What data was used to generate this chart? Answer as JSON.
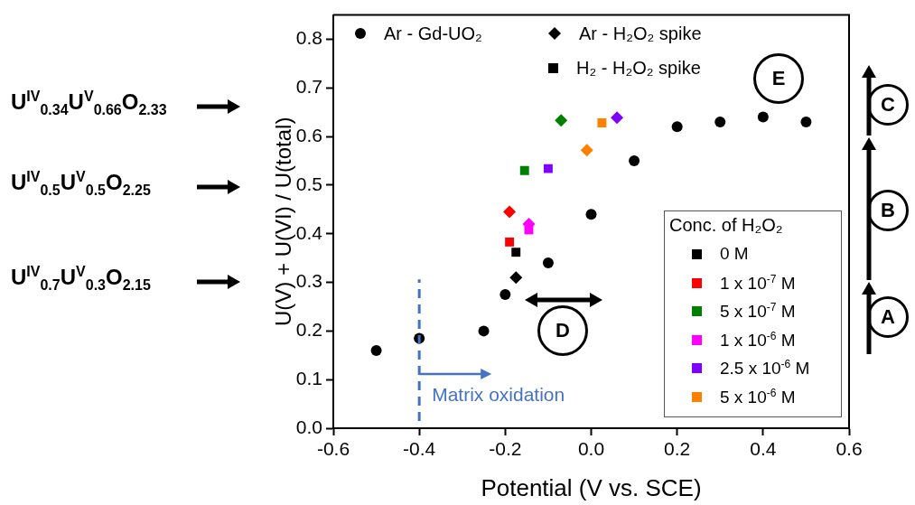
{
  "chart_data": {
    "type": "scatter",
    "xlabel": "Potential (V vs. SCE)",
    "ylabel": "U(V) + U(VI) / U(total)",
    "xlim": [
      -0.6,
      0.6
    ],
    "xticks": [
      -0.6,
      -0.4,
      -0.2,
      {
        "value": 0,
        "label": "0.0"
      },
      0.2,
      0.4,
      0.6
    ],
    "ylim": [
      0,
      0.85
    ],
    "yticks": [
      {
        "value": 0,
        "label": "0.0"
      },
      0.1,
      0.2,
      0.3,
      0.4,
      0.5,
      0.6,
      0.7,
      0.8
    ],
    "grid": false,
    "legend": "top left",
    "legend_title": "Conc. of H₂O₂",
    "series": [
      {
        "name": "Ar - Gd-UO₂",
        "marker": "circle",
        "color": "#000000",
        "x": [
          -0.5,
          -0.4,
          -0.25,
          -0.2,
          -0.1,
          0,
          0.1,
          0.2,
          0.3,
          0.4,
          0.5
        ],
        "values": [
          0.16,
          0.185,
          0.2,
          0.275,
          0.34,
          0.44,
          0.55,
          0.62,
          0.63,
          0.64,
          0.63
        ]
      },
      {
        "name": "Ar - H₂O₂ spike",
        "marker": "diamond",
        "color": "#000000",
        "colors": [
          "#000000",
          "#ff0000",
          "#ff00ff",
          "#008000",
          "#ff8000",
          "#8000ff"
        ],
        "x": [
          -0.175,
          -0.19,
          -0.145,
          -0.07,
          -0.01,
          0.06
        ],
        "values": [
          0.31,
          0.445,
          0.42,
          0.633,
          0.572,
          0.639
        ]
      },
      {
        "name": "H₂ - H₂O₂ spike",
        "marker": "square",
        "color": "#000000",
        "colors": [
          "#000000",
          "#ff0000",
          "#ff00ff",
          "#008000",
          "#8000ff",
          "#ff8000"
        ],
        "x": [
          -0.175,
          -0.19,
          -0.145,
          -0.155,
          -0.1,
          0.025
        ],
        "values": [
          0.362,
          0.383,
          0.408,
          0.53,
          0.534,
          0.628
        ]
      },
      {
        "name": "0 M",
        "marker": "square",
        "color": "#000000"
      },
      {
        "name": "1 x 10$^{-7}$ M",
        "marker": "square",
        "color": "#ff0000"
      },
      {
        "name": "5 x 10$^{-7}$ M",
        "marker": "square",
        "color": "#008000"
      },
      {
        "name": "1 x 10$^{-6}$ M",
        "marker": "square",
        "color": "#ff00ff"
      },
      {
        "name": "2.5 x 10$^{-6}$ M",
        "marker": "square",
        "color": "#8000ff"
      },
      {
        "name": "5 x 10$^{-6}$ M",
        "marker": "square",
        "color": "#ff8000"
      }
    ],
    "ref_lines": [
      {
        "axis": "x",
        "value": -0.4,
        "label": "Matrix oxidation",
        "color": "#4472c4",
        "line_style": "dashed"
      }
    ],
    "annotations": [
      "U$^{IV}$$_{0.34}$U$^{V}$$_{0.66}$O$_{2.33}$",
      "U$^{IV}$$_{0.5}$U$^{V}$$_{0.5}$O$_{2.25}$",
      "U$^{IV}$$_{0.7}$U$^{V}$$_{0.3}$O$_{2.15}$",
      "A",
      "B",
      "C",
      "D",
      "E"
    ]
  }
}
